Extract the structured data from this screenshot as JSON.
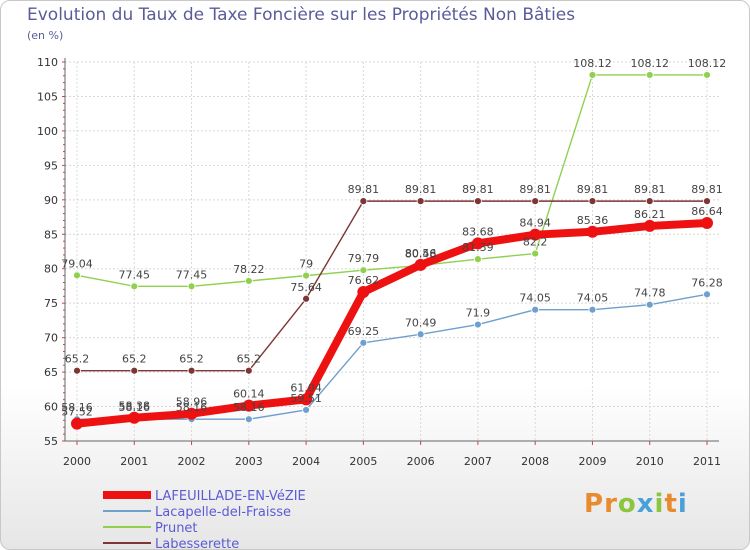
{
  "header": {
    "title": "Evolution du Taux de Taxe Foncière sur les Propriétés Non Bâties",
    "unit": "(en %)"
  },
  "logo": {
    "text": "Proxiti"
  },
  "chart_data": {
    "type": "line",
    "title": "Evolution du Taux de Taxe Foncière sur les Propriétés Non Bâties",
    "ylabel": "(en %)",
    "xlabel": "",
    "x": [
      "2000",
      "2001",
      "2002",
      "2003",
      "2004",
      "2005",
      "2006",
      "2007",
      "2008",
      "2009",
      "2010",
      "2011"
    ],
    "ylim": [
      55,
      110
    ],
    "yticks": [
      55,
      60,
      65,
      70,
      75,
      80,
      85,
      90,
      95,
      100,
      105,
      110
    ],
    "legend_position": "bottom-left",
    "series": [
      {
        "name": "LAFEUILLADE-EN-VéZIE",
        "color": "#ee1111",
        "emphasis": true,
        "values": [
          57.52,
          58.38,
          58.96,
          60.14,
          61.04,
          76.62,
          80.56,
          83.68,
          84.94,
          85.36,
          86.21,
          86.64
        ],
        "labels": [
          "57.52",
          "58.38",
          "58.96",
          "60.14",
          "61.04",
          "76.62",
          "80.56",
          "83.68",
          "84.94",
          "85.36",
          "86.21",
          "86.64"
        ]
      },
      {
        "name": "Lacapelle-del-Fraisse",
        "color": "#6f9fcc",
        "values": [
          58.16,
          58.16,
          58.16,
          58.16,
          59.51,
          69.25,
          70.49,
          71.9,
          74.05,
          74.05,
          74.78,
          76.28
        ],
        "labels": [
          "58.16",
          "58.16",
          "58.16",
          "58.16",
          "59.51",
          "69.25",
          "70.49",
          "71.9",
          "74.05",
          "74.05",
          "74.78",
          "76.28"
        ]
      },
      {
        "name": "Prunet",
        "color": "#8fd14f",
        "values": [
          79.04,
          77.45,
          77.45,
          78.22,
          79,
          79.79,
          80.48,
          81.39,
          82.2,
          108.12,
          108.12,
          108.12
        ],
        "labels": [
          "79.04",
          "77.45",
          "77.45",
          "78.22",
          "79",
          "79.79",
          "80.48",
          "81.39",
          "82.2",
          "108.12",
          "108.12",
          "108.12"
        ]
      },
      {
        "name": "Labesserette",
        "color": "#7d3535",
        "values": [
          65.2,
          65.2,
          65.2,
          65.2,
          75.64,
          89.81,
          89.81,
          89.81,
          89.81,
          89.81,
          89.81,
          89.81
        ],
        "labels": [
          "65.2",
          "65.2",
          "65.2",
          "65.2",
          "75.64",
          "89.81",
          "89.81",
          "89.81",
          "89.81",
          "89.81",
          "89.81",
          "89.81"
        ]
      }
    ]
  }
}
